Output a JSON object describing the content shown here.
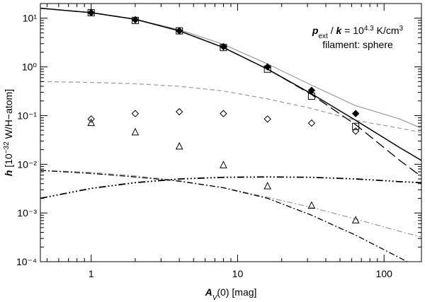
{
  "chart_data": {
    "type": "line",
    "xlog": true,
    "ylog": true,
    "xlim": [
      0.45,
      180
    ],
    "ylim": [
      0.0001,
      20
    ],
    "xticks": [
      1,
      10,
      100
    ],
    "xminor_ticks": [
      0.5,
      0.6,
      0.7,
      0.8,
      0.9,
      2,
      3,
      4,
      5,
      6,
      7,
      8,
      9,
      20,
      30,
      40,
      50,
      60,
      70,
      80,
      90
    ],
    "yticks": [
      {
        "value": 10,
        "label": "10¹"
      },
      {
        "value": 1,
        "label": "10⁰"
      },
      {
        "value": 0.1,
        "label": "10⁻¹"
      },
      {
        "value": 0.01,
        "label": "10⁻²"
      },
      {
        "value": 0.001,
        "label": "10⁻³"
      },
      {
        "value": 0.0001,
        "label": "10⁻⁴"
      }
    ],
    "yminor_ticks": [
      0.0002,
      0.0003,
      0.0004,
      0.0005,
      0.0006,
      0.0007,
      0.0008,
      0.0009,
      0.002,
      0.003,
      0.004,
      0.005,
      0.006,
      0.007,
      0.008,
      0.009,
      0.02,
      0.03,
      0.04,
      0.05,
      0.06,
      0.07,
      0.08,
      0.09,
      0.2,
      0.3,
      0.4,
      0.5,
      0.6,
      0.7,
      0.8,
      0.9,
      2,
      3,
      4,
      5,
      6,
      7,
      8,
      9,
      20
    ],
    "x_label": [
      {
        "text": "A",
        "italic": true,
        "bold": true
      },
      {
        "text": "V",
        "italic": true,
        "sub": true
      },
      {
        "text": "(0) [mag]"
      }
    ],
    "y_label": [
      {
        "text": "h",
        "italic": true,
        "bold": true
      },
      {
        "text": " [10"
      },
      {
        "text": "−32",
        "sup": true
      },
      {
        "text": " W/H−atom]"
      }
    ],
    "annotation": [
      [
        {
          "text": "p",
          "italic": true,
          "bold": true
        },
        {
          "text": "ext",
          "sub": true
        },
        {
          "text": " / "
        },
        {
          "text": "k",
          "italic": true,
          "bold": true
        },
        {
          "text": " = 10"
        },
        {
          "text": "4.3",
          "sup": true
        },
        {
          "text": " K/cm"
        },
        {
          "text": "3",
          "sup": true
        }
      ],
      [
        {
          "text": "filament: sphere"
        }
      ]
    ],
    "x": [
      0.45,
      1,
      2,
      4,
      8,
      16,
      32,
      64,
      128,
      180
    ],
    "series": [
      {
        "color": "#999999",
        "dash": "",
        "width": 1.2,
        "values": [
          16,
          13,
          9.5,
          5.8,
          2.9,
          1.15,
          0.42,
          0.16,
          0.085,
          0.055
        ]
      },
      {
        "color": "#999999",
        "dash": "6,4",
        "width": 1.2,
        "values": [
          0.5,
          0.48,
          0.45,
          0.4,
          0.32,
          0.22,
          0.14,
          0.08,
          0.055,
          0.045
        ]
      },
      {
        "color": "#999999",
        "dash": "8,3,2,3",
        "width": 1.2,
        "values": [
          0.0075,
          0.0068,
          0.0058,
          0.0046,
          0.0033,
          0.0021,
          0.0013,
          0.00075,
          0.00042,
          0.00032
        ]
      },
      {
        "color": "#000000",
        "dash": "8,3,2,3",
        "width": 1.3,
        "values": [
          0.0075,
          0.0065,
          0.0055,
          0.0045,
          0.0033,
          0.002,
          0.0009,
          0.00035,
          0.00012,
          7e-05
        ]
      },
      {
        "color": "#000000",
        "dash": "10,3,2,3,2,3,2,3",
        "width": 1.8,
        "values": [
          0.002,
          0.0032,
          0.0042,
          0.005,
          0.0054,
          0.0055,
          0.0054,
          0.005,
          0.0044,
          0.0042
        ]
      },
      {
        "color": "#000000",
        "dash": "14,6",
        "width": 1.3,
        "values": [
          16,
          13,
          9.5,
          5.5,
          2.5,
          0.9,
          0.27,
          0.065,
          0.012,
          0.0056
        ]
      },
      {
        "color": "#000000",
        "dash": "",
        "width": 1.5,
        "values": [
          16,
          13,
          9.5,
          5.5,
          2.5,
          0.9,
          0.28,
          0.08,
          0.022,
          0.012
        ]
      }
    ],
    "points_x": [
      1,
      2,
      4,
      8,
      16,
      32,
      64
    ],
    "points": [
      {
        "marker": "diamond",
        "filled": true,
        "values": [
          13,
          9.3,
          5.5,
          2.6,
          1.0,
          0.33,
          0.11
        ]
      },
      {
        "marker": "square",
        "filled": false,
        "values": [
          13,
          9,
          5.5,
          2.5,
          0.9,
          0.25,
          0.06
        ]
      },
      {
        "marker": "diamond",
        "filled": false,
        "values": [
          0.085,
          0.11,
          0.12,
          0.11,
          0.085,
          0.07,
          0.048
        ]
      },
      {
        "marker": "triangle",
        "filled": false,
        "values": [
          0.07,
          0.045,
          0.023,
          0.0095,
          0.0035,
          0.0014,
          0.0007
        ]
      }
    ]
  }
}
